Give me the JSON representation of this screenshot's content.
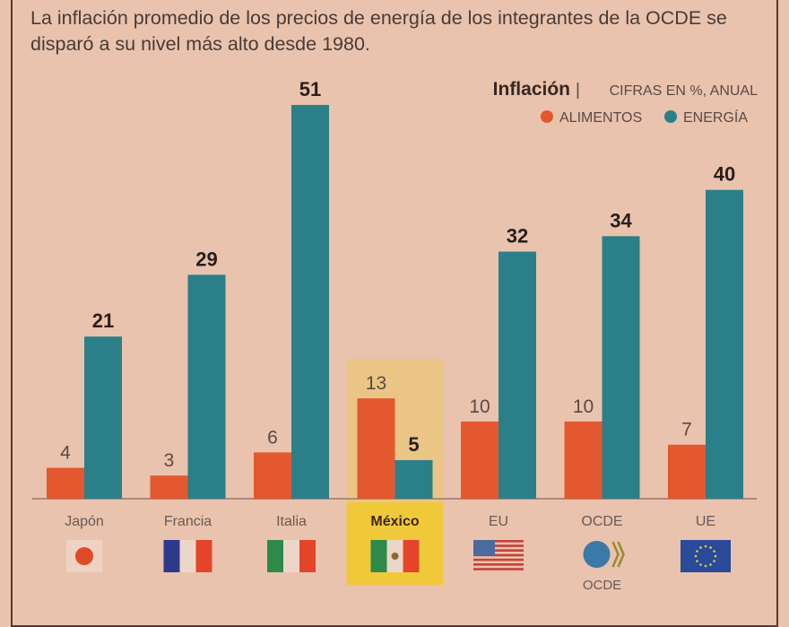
{
  "title": "La inflación promedio de los precios de energía de los integrantes de la OCDE se disparó a su nivel más alto desde 1980.",
  "chart_data": {
    "type": "bar",
    "title": "Inflación",
    "subtitle": "CIFRAS EN %, ANUAL",
    "categories": [
      "Japón",
      "Francia",
      "Italia",
      "México",
      "EU",
      "OCDE",
      "UE"
    ],
    "highlight": "México",
    "series": [
      {
        "name": "ALIMENTOS",
        "color": "#e4582f",
        "values": [
          4,
          3,
          6,
          13,
          10,
          10,
          7
        ]
      },
      {
        "name": "ENERGÍA",
        "color": "#2b7f88",
        "values": [
          21,
          29,
          51,
          5,
          32,
          34,
          40
        ]
      }
    ],
    "ylim": [
      0,
      51
    ],
    "grid": false,
    "legend": "top-right",
    "flags": [
      "japan-flag",
      "france-flag",
      "italy-flag",
      "mexico-flag",
      "usa-flag",
      "oecd-logo",
      "eu-flag"
    ],
    "oecd_logo_text": "OCDE",
    "highlight_color": "#f0c93a"
  }
}
